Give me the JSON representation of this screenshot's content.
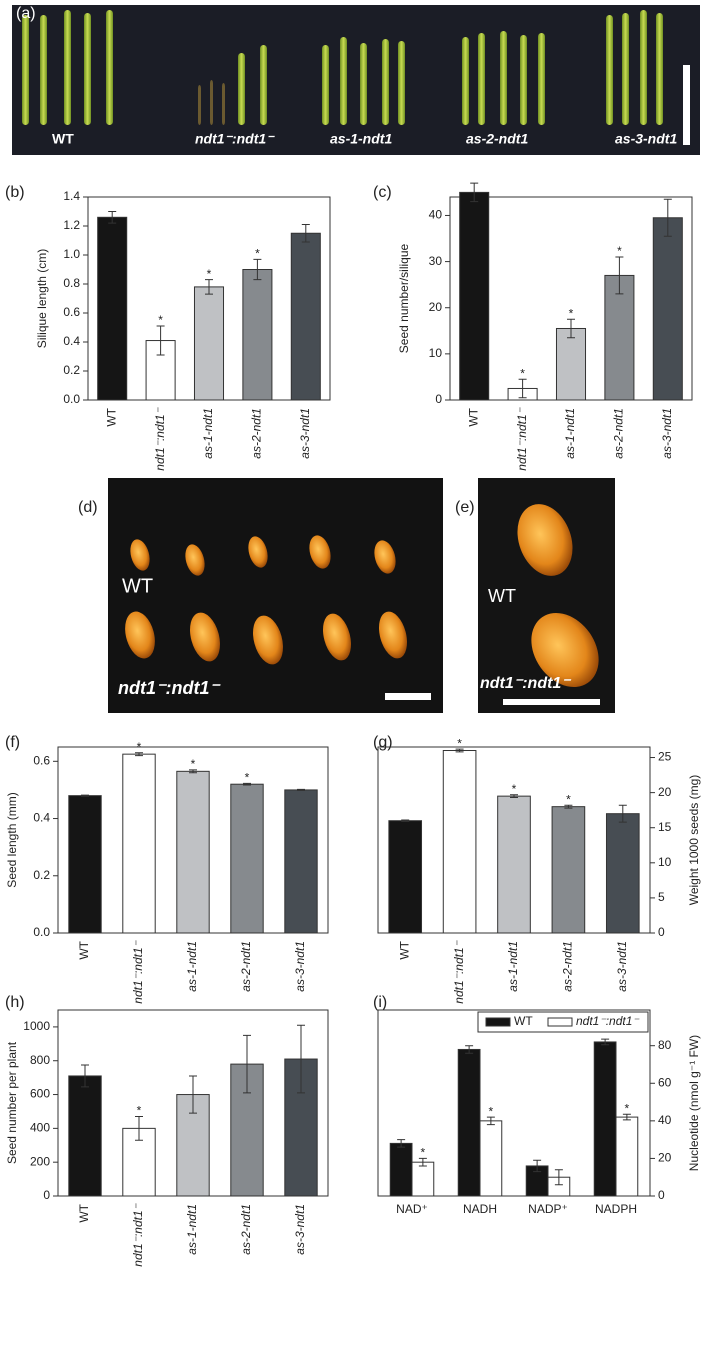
{
  "images": [
    {
      "panel": "(a)",
      "labels": [
        "WT",
        "ndt1⁻:ndt1⁻",
        "as-1-ndt1",
        "as-2-ndt1",
        "as-3-ndt1"
      ]
    },
    {
      "panel": "(d)",
      "labels": [
        "WT",
        "ndt1⁻:ndt1⁻"
      ]
    },
    {
      "panel": "(e)",
      "labels": [
        "WT",
        "ndt1⁻:ndt1⁻"
      ]
    }
  ],
  "chart_data": [
    {
      "type": "bar",
      "panel": "(b)",
      "y_label": "Silique length (cm)",
      "y_axis_side": "left",
      "categories": [
        "WT",
        "ndt1⁻:ndt1⁻",
        "as-1-ndt1",
        "as-2-ndt1",
        "as-3-ndt1"
      ],
      "values": [
        1.26,
        0.41,
        0.78,
        0.9,
        1.15
      ],
      "errors": [
        0.04,
        0.1,
        0.05,
        0.07,
        0.06
      ],
      "annotations": [
        null,
        "*",
        "*",
        "*",
        null
      ],
      "colors": [
        "#151515",
        "#ffffff",
        "#bfc1c4",
        "#868a8e",
        "#474d53"
      ],
      "ylim": [
        0,
        1.4
      ],
      "yticks": [
        {
          "value": 0,
          "label": "0.0"
        },
        0.2,
        0.4,
        0.6,
        0.8,
        {
          "value": 1,
          "label": "1.0"
        },
        1.2,
        1.4
      ]
    },
    {
      "type": "bar",
      "panel": "(c)",
      "y_label": "Seed number/silique",
      "y_axis_side": "left",
      "categories": [
        "WT",
        "ndt1⁻:ndt1⁻",
        "as-1-ndt1",
        "as-2-ndt1",
        "as-3-ndt1"
      ],
      "values": [
        45,
        2.5,
        15.5,
        27,
        39.5
      ],
      "errors": [
        2,
        2,
        2,
        4,
        4
      ],
      "annotations": [
        null,
        "*",
        "*",
        "*",
        null
      ],
      "colors": [
        "#151515",
        "#ffffff",
        "#bfc1c4",
        "#868a8e",
        "#474d53"
      ],
      "ylim": [
        0,
        44
      ],
      "yticks": [
        0,
        10,
        20,
        30,
        40
      ]
    },
    {
      "type": "bar",
      "panel": "(f)",
      "y_label": "Seed length (mm)",
      "y_axis_side": "left",
      "categories": [
        "WT",
        "ndt1⁻:ndt1⁻",
        "as-1-ndt1",
        "as-2-ndt1",
        "as-3-ndt1"
      ],
      "values": [
        0.48,
        0.625,
        0.565,
        0.52,
        0.5
      ],
      "errors": [
        0.002,
        0.005,
        0.005,
        0.003,
        0.002
      ],
      "annotations": [
        null,
        "*",
        "*",
        "*",
        null
      ],
      "colors": [
        "#151515",
        "#ffffff",
        "#bfc1c4",
        "#868a8e",
        "#474d53"
      ],
      "ylim": [
        0,
        0.65
      ],
      "yticks": [
        {
          "value": 0,
          "label": "0.0"
        },
        0.2,
        0.4,
        0.6
      ]
    },
    {
      "type": "bar",
      "panel": "(g)",
      "y_label": "Weight 1000 seeds (mg)",
      "y_axis_side": "right",
      "categories": [
        "WT",
        "ndt1⁻:ndt1⁻",
        "as-1-ndt1",
        "as-2-ndt1",
        "as-3-ndt1"
      ],
      "values": [
        16,
        26,
        19.5,
        18,
        17
      ],
      "errors": [
        0.1,
        0.2,
        0.2,
        0.2,
        1.2
      ],
      "annotations": [
        null,
        "*",
        "*",
        "*",
        null
      ],
      "colors": [
        "#151515",
        "#ffffff",
        "#bfc1c4",
        "#868a8e",
        "#474d53"
      ],
      "ylim": [
        0,
        26.5
      ],
      "yticks": [
        0,
        5,
        10,
        15,
        20,
        25
      ]
    },
    {
      "type": "bar",
      "panel": "(h)",
      "y_label": "Seed number per plant",
      "y_axis_side": "left",
      "categories": [
        "WT",
        "ndt1⁻:ndt1⁻",
        "as-1-ndt1",
        "as-2-ndt1",
        "as-3-ndt1"
      ],
      "values": [
        710,
        400,
        600,
        780,
        810
      ],
      "errors": [
        65,
        70,
        110,
        170,
        200
      ],
      "annotations": [
        null,
        "*",
        null,
        null,
        null
      ],
      "colors": [
        "#151515",
        "#ffffff",
        "#bfc1c4",
        "#868a8e",
        "#474d53"
      ],
      "ylim": [
        0,
        1100
      ],
      "yticks": [
        0,
        200,
        400,
        600,
        800,
        1000
      ]
    },
    {
      "type": "bar",
      "panel": "(i)",
      "y_label": "Nucleotide (nmol g⁻¹ FW)",
      "y_axis_side": "right",
      "legend": "top-right",
      "categories": [
        "NAD⁺",
        "NADH",
        "NADP⁺",
        "NADPH"
      ],
      "series": [
        {
          "name": "WT",
          "color": "#151515",
          "values": [
            28,
            78,
            16,
            82
          ],
          "errors": [
            2,
            2,
            3,
            1.5
          ],
          "annotations": [
            null,
            null,
            null,
            null
          ]
        },
        {
          "name": "ndt1⁻:ndt1⁻",
          "color": "#ffffff",
          "values": [
            18,
            40,
            10,
            42
          ],
          "errors": [
            2,
            2,
            4,
            1.5
          ],
          "annotations": [
            "*",
            "*",
            null,
            "*"
          ]
        }
      ],
      "ylim": [
        0,
        99
      ],
      "yticks": [
        0,
        20,
        40,
        60,
        80
      ]
    }
  ]
}
